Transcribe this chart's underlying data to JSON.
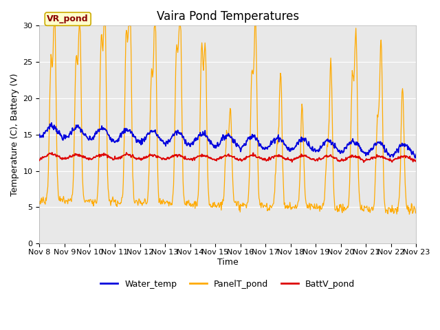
{
  "title": "Vaira Pond Temperatures",
  "xlabel": "Time",
  "ylabel": "Temperature (C), Battery (V)",
  "site_label": "VR_pond",
  "ylim": [
    0,
    30
  ],
  "yticks": [
    0,
    5,
    10,
    15,
    20,
    25,
    30
  ],
  "xtick_labels": [
    "Nov 8",
    "Nov 9",
    "Nov 10",
    "Nov 11",
    "Nov 12",
    "Nov 13",
    "Nov 14",
    "Nov 15",
    "Nov 16",
    "Nov 17",
    "Nov 18",
    "Nov 19",
    "Nov 20",
    "Nov 21",
    "Nov 22",
    "Nov 23"
  ],
  "water_color": "#0000dd",
  "panel_color": "#ffaa00",
  "batt_color": "#dd0000",
  "axes_bg_color": "#e8e8e8",
  "fig_bg_color": "#ffffff",
  "legend_labels": [
    "Water_temp",
    "PanelT_pond",
    "BattV_pond"
  ],
  "title_fontsize": 12,
  "axis_label_fontsize": 9,
  "tick_fontsize": 8,
  "legend_fontsize": 9
}
